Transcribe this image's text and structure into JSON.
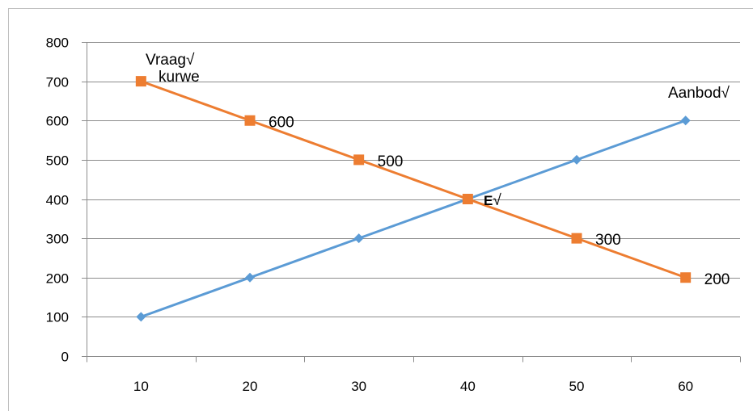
{
  "chart_data": {
    "type": "line",
    "categories": [
      "10",
      "20",
      "30",
      "40",
      "50",
      "60"
    ],
    "ylim": [
      0,
      800
    ],
    "yticks": [
      0,
      100,
      200,
      300,
      400,
      500,
      600,
      700,
      800
    ],
    "grid": true,
    "legend": "none",
    "series": [
      {
        "key": "supply",
        "values": [
          100,
          200,
          300,
          400,
          500,
          600
        ],
        "color": "#5b9bd5",
        "marker": "diamond"
      },
      {
        "key": "demand",
        "values": [
          700,
          600,
          500,
          400,
          300,
          200
        ],
        "color": "#ed7d31",
        "marker": "square",
        "data_labels": [
          "",
          "600",
          "500",
          "",
          "300",
          "200"
        ]
      }
    ],
    "annotations": {
      "demand_line1": "Vraag√",
      "demand_line2": "kurwe",
      "supply": "Aanbod√",
      "equilibrium_bold": "E",
      "equilibrium_check": "√"
    }
  }
}
